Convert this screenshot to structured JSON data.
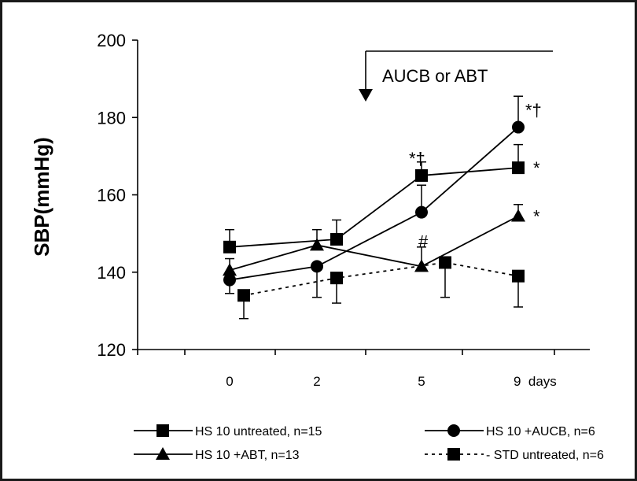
{
  "chart_data": {
    "type": "line",
    "title": "",
    "xlabel": "",
    "ylabel": "SBP(mmHg)",
    "ylim": [
      120,
      200
    ],
    "y_ticks": [
      "120",
      "140",
      "160",
      "180",
      "200"
    ],
    "x_ticks": [
      "0",
      "2",
      "5",
      "9  days"
    ],
    "categories": [
      "0",
      "2",
      "5",
      "9"
    ],
    "annotation": "AUCB or ABT",
    "legend_position": "bottom",
    "series": [
      {
        "name": "HS 10 untreated, n=15",
        "marker": "square",
        "line": "solid",
        "values": [
          146.5,
          148.5,
          165,
          167
        ],
        "errors": [
          4.5,
          5,
          3.5,
          6
        ],
        "labels": [
          "",
          "",
          "*†",
          "*"
        ]
      },
      {
        "name": "HS 10 +AUCB, n=6",
        "marker": "circle",
        "line": "solid",
        "values": [
          138,
          141.5,
          155.5,
          177.5
        ],
        "errors": [
          3.5,
          8,
          7,
          8
        ],
        "labels": [
          "",
          "",
          "",
          "*†"
        ]
      },
      {
        "name": "HS 10 +ABT, n=13",
        "marker": "triangle",
        "line": "solid",
        "values": [
          140.5,
          147,
          141.5,
          154.5
        ],
        "errors": [
          3,
          4,
          5,
          3
        ],
        "labels": [
          "",
          "",
          "#",
          "*"
        ]
      },
      {
        "name": "STD untreated, n=6",
        "marker": "square",
        "line": "dashed",
        "values": [
          134,
          138.5,
          142.5,
          139
        ],
        "errors": [
          6,
          6.5,
          9,
          8
        ],
        "labels": [
          "",
          "",
          "",
          ""
        ]
      }
    ]
  }
}
